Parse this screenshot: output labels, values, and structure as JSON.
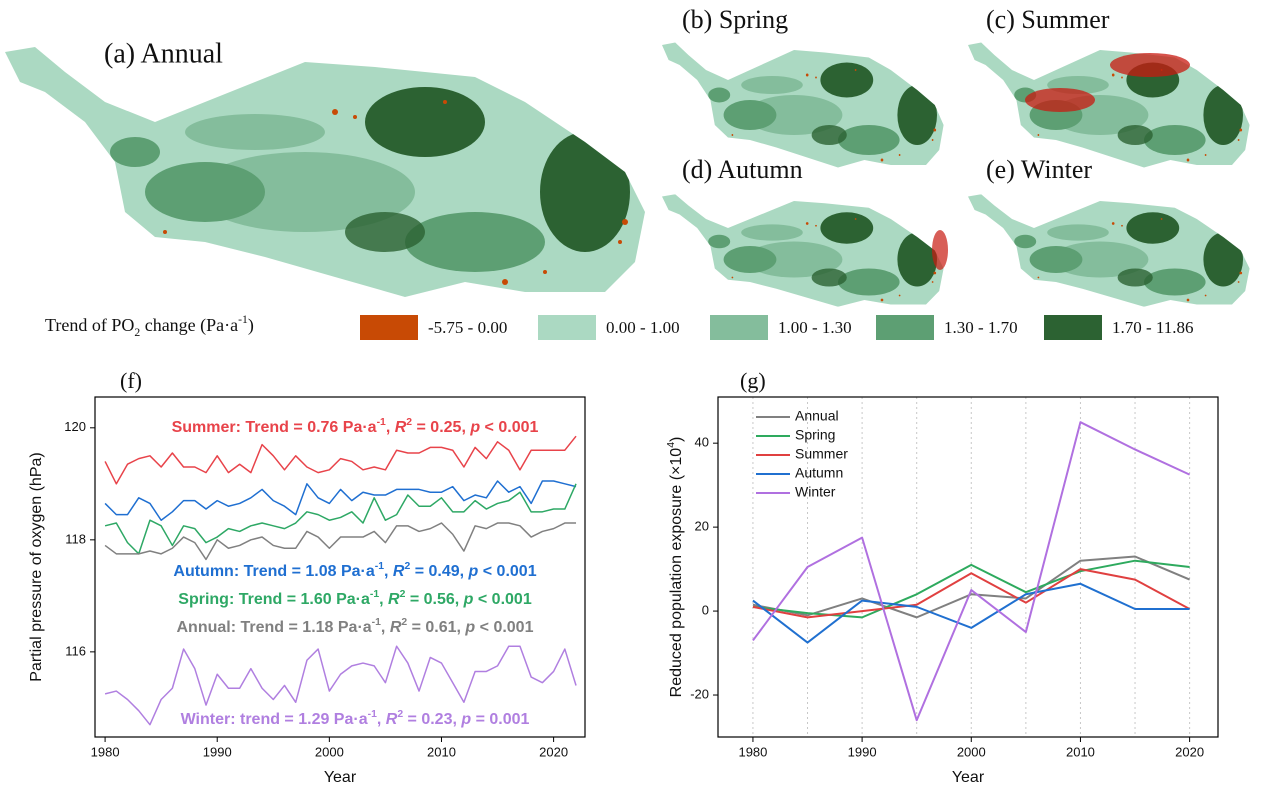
{
  "maps": {
    "panels": [
      {
        "label": "(a) Annual"
      },
      {
        "label": "(b) Spring"
      },
      {
        "label": "(c) Summer"
      },
      {
        "label": "(d) Autumn"
      },
      {
        "label": "(e)  Winter"
      }
    ]
  },
  "map_legend": {
    "title": [
      {
        "text": "Trend of PO"
      },
      {
        "text": "2",
        "style": "sub"
      },
      {
        "text": " change (Pa·a"
      },
      {
        "text": "-1",
        "style": "sup"
      },
      {
        "text": ")"
      }
    ],
    "items": [
      {
        "label": "-5.75 - 0.00",
        "color": "#c84a05"
      },
      {
        "label": "0.00 - 1.00",
        "color": "#abd9c2"
      },
      {
        "label": "1.00 - 1.30",
        "color": "#84bd9c"
      },
      {
        "label": "1.30 - 1.70",
        "color": "#5d9f73"
      },
      {
        "label": "1.70 - 11.86",
        "color": "#2c6232"
      }
    ]
  },
  "chart_data": [
    {
      "type": "line",
      "panel_label": "(f)",
      "x_label": "Year",
      "y_label": "Partial pressure of oxygen (hPa)",
      "xlim": [
        1979.1,
        2022.8
      ],
      "ylim": [
        114.48,
        120.55
      ],
      "xticks": [
        1980,
        1990,
        2000,
        2010,
        2020
      ],
      "yticks": [
        116,
        118,
        120
      ],
      "x": [
        1980,
        1981,
        1982,
        1983,
        1984,
        1985,
        1986,
        1987,
        1988,
        1989,
        1990,
        1991,
        1992,
        1993,
        1994,
        1995,
        1996,
        1997,
        1998,
        1999,
        2000,
        2001,
        2002,
        2003,
        2004,
        2005,
        2006,
        2007,
        2008,
        2009,
        2010,
        2011,
        2012,
        2013,
        2014,
        2015,
        2016,
        2017,
        2018,
        2019,
        2020,
        2021,
        2022
      ],
      "series": [
        {
          "color": "#e8434a",
          "values": [
            119.4,
            119.0,
            119.35,
            119.45,
            119.5,
            119.3,
            119.55,
            119.3,
            119.3,
            119.2,
            119.5,
            119.2,
            119.35,
            119.2,
            119.7,
            119.5,
            119.25,
            119.5,
            119.3,
            119.2,
            119.25,
            119.45,
            119.4,
            119.25,
            119.3,
            119.25,
            119.6,
            119.55,
            119.55,
            119.65,
            119.65,
            119.6,
            119.3,
            119.65,
            119.45,
            119.75,
            119.6,
            119.25,
            119.6,
            119.6,
            119.6,
            119.6,
            119.85
          ]
        },
        {
          "color": "#1f6fd1",
          "values": [
            118.65,
            118.45,
            118.45,
            118.75,
            118.65,
            118.35,
            118.5,
            118.7,
            118.7,
            118.55,
            118.7,
            118.6,
            118.65,
            118.75,
            118.9,
            118.7,
            118.6,
            118.45,
            119.0,
            118.75,
            118.65,
            118.9,
            118.7,
            118.85,
            118.8,
            118.8,
            118.9,
            118.9,
            118.9,
            118.85,
            118.85,
            118.95,
            118.7,
            118.8,
            118.75,
            119.05,
            118.85,
            118.95,
            118.65,
            119.05,
            119.05,
            119.0,
            118.95
          ]
        },
        {
          "color": "#2ea865",
          "values": [
            118.25,
            118.3,
            117.95,
            117.75,
            118.35,
            118.25,
            117.9,
            118.25,
            118.2,
            117.95,
            118.05,
            118.2,
            118.15,
            118.25,
            118.3,
            118.25,
            118.2,
            118.3,
            118.5,
            118.45,
            118.35,
            118.4,
            118.5,
            118.3,
            118.75,
            118.35,
            118.45,
            118.8,
            118.6,
            118.6,
            118.75,
            118.5,
            118.5,
            118.7,
            118.55,
            118.65,
            118.7,
            118.85,
            118.5,
            118.5,
            118.55,
            118.55,
            119.0
          ]
        },
        {
          "color": "#808080",
          "values": [
            117.9,
            117.75,
            117.75,
            117.75,
            117.8,
            117.75,
            117.85,
            118.05,
            117.95,
            117.65,
            118.0,
            117.85,
            117.9,
            118.0,
            118.05,
            117.9,
            117.85,
            117.85,
            118.15,
            118.05,
            117.85,
            118.05,
            118.05,
            118.05,
            118.15,
            117.95,
            118.25,
            118.25,
            118.15,
            118.2,
            118.3,
            118.1,
            117.8,
            118.25,
            118.2,
            118.3,
            118.3,
            118.25,
            118.05,
            118.15,
            118.2,
            118.3,
            118.3
          ]
        },
        {
          "color": "#b07fe0",
          "values": [
            115.25,
            115.3,
            115.15,
            114.95,
            114.7,
            115.15,
            115.35,
            116.05,
            115.7,
            115.05,
            115.6,
            115.35,
            115.35,
            115.7,
            115.35,
            115.15,
            115.4,
            115.1,
            115.85,
            116.05,
            115.3,
            115.6,
            115.75,
            115.8,
            115.75,
            115.45,
            116.1,
            115.8,
            115.3,
            115.9,
            115.8,
            115.45,
            115.1,
            115.65,
            115.65,
            115.75,
            116.1,
            116.1,
            115.55,
            115.45,
            115.65,
            116.05,
            115.4
          ]
        }
      ],
      "annotations": [
        {
          "color": "#e8434a",
          "segments": [
            {
              "text": "Summer: Trend = 0.76 Pa·a"
            },
            {
              "text": "-1",
              "style": "sup"
            },
            {
              "text": ", "
            },
            {
              "text": "R",
              "style": "italic"
            },
            {
              "text": "2",
              "style": "sup"
            },
            {
              "text": " = 0.25, "
            },
            {
              "text": "p",
              "style": "italic"
            },
            {
              "text": " < 0.001"
            }
          ]
        },
        {
          "color": "#1f6fd1",
          "segments": [
            {
              "text": "Autumn: Trend = 1.08 Pa·a"
            },
            {
              "text": "-1",
              "style": "sup"
            },
            {
              "text": ", "
            },
            {
              "text": "R",
              "style": "italic"
            },
            {
              "text": "2",
              "style": "sup"
            },
            {
              "text": " = 0.49, "
            },
            {
              "text": "p",
              "style": "italic"
            },
            {
              "text": " < 0.001"
            }
          ]
        },
        {
          "color": "#2ea865",
          "segments": [
            {
              "text": "Spring: Trend  = 1.60 Pa·a"
            },
            {
              "text": "-1",
              "style": "sup"
            },
            {
              "text": ", "
            },
            {
              "text": "R",
              "style": "italic"
            },
            {
              "text": "2",
              "style": "sup"
            },
            {
              "text": " = 0.56, "
            },
            {
              "text": "p",
              "style": "italic"
            },
            {
              "text": " < 0.001"
            }
          ]
        },
        {
          "color": "#808080",
          "segments": [
            {
              "text": "Annual: Trend = 1.18 Pa·a"
            },
            {
              "text": "-1",
              "style": "sup"
            },
            {
              "text": ", "
            },
            {
              "text": "R",
              "style": "italic"
            },
            {
              "text": "2",
              "style": "sup"
            },
            {
              "text": " = 0.61, "
            },
            {
              "text": "p",
              "style": "italic"
            },
            {
              "text": " < 0.001"
            }
          ]
        },
        {
          "color": "#b07fe0",
          "segments": [
            {
              "text": "Winter: trend = 1.29 Pa·a"
            },
            {
              "text": "-1",
              "style": "sup"
            },
            {
              "text": ", "
            },
            {
              "text": "R",
              "style": "italic"
            },
            {
              "text": "2",
              "style": "sup"
            },
            {
              "text": " = 0.23, "
            },
            {
              "text": "p",
              "style": "italic"
            },
            {
              "text": " = 0.001"
            }
          ]
        }
      ]
    },
    {
      "type": "line",
      "panel_label": "(g)",
      "x_label": "Year",
      "y_label": [
        {
          "text": "Reduced population exposure (×10"
        },
        {
          "text": "4",
          "style": "sup"
        },
        {
          "text": ")"
        }
      ],
      "xlim": [
        1976.8,
        2022.6
      ],
      "ylim": [
        -30,
        51
      ],
      "xticks": [
        1980,
        1990,
        2000,
        2010,
        2020
      ],
      "xminorticks": [
        1980,
        1985,
        1990,
        1995,
        2000,
        2005,
        2010,
        2015,
        2020
      ],
      "yticks": [
        -20,
        0,
        20,
        40
      ],
      "legend": "top-left",
      "x": [
        1980,
        1985,
        1990,
        1995,
        2000,
        2005,
        2010,
        2015,
        2020
      ],
      "series": [
        {
          "name": "Annual",
          "color": "#808080",
          "values": [
            1.5,
            -1,
            3,
            -1.5,
            4,
            3,
            12,
            13,
            7.5
          ]
        },
        {
          "name": "Spring",
          "color": "#2eaa5e",
          "values": [
            1,
            -0.5,
            -1.5,
            4,
            11,
            4.5,
            9.5,
            12,
            10.5
          ]
        },
        {
          "name": "Summer",
          "color": "#e04040",
          "values": [
            1,
            -1.5,
            0,
            1.5,
            9,
            2,
            10,
            7.5,
            0.5
          ]
        },
        {
          "name": "Autumn",
          "color": "#2070d0",
          "values": [
            2.5,
            -7.5,
            2.5,
            1,
            -4,
            4,
            6.5,
            0.5,
            0.5
          ]
        },
        {
          "name": "Winter",
          "color": "#b070e0",
          "values": [
            -7,
            10.5,
            17.5,
            -26,
            5,
            -5,
            45,
            38.5,
            32.5
          ]
        }
      ]
    }
  ]
}
